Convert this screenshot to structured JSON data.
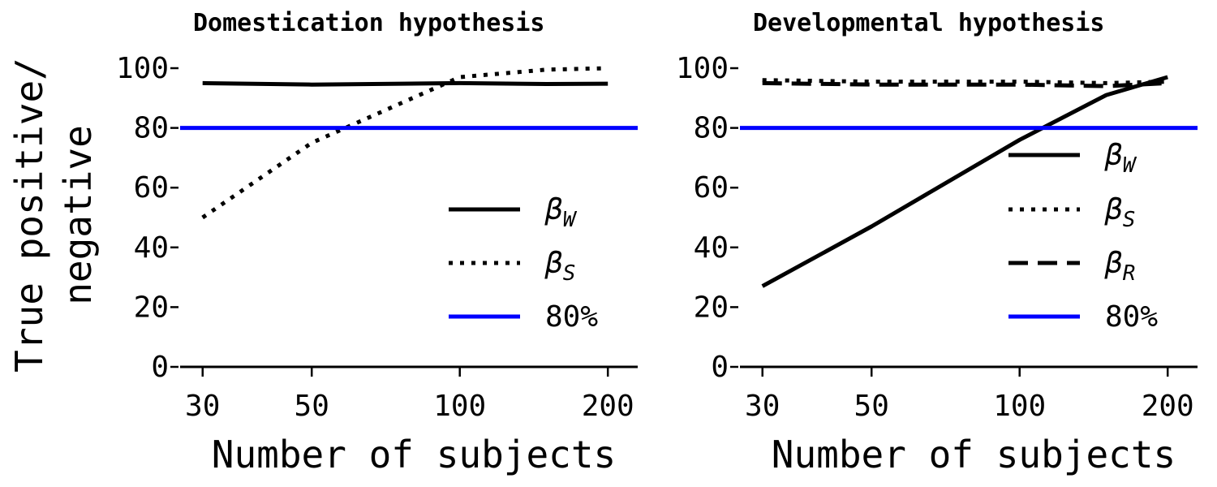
{
  "figure": {
    "ylabel_line1": "True positive/",
    "ylabel_line2": "negative"
  },
  "chart_data": [
    {
      "type": "line",
      "title": "Domestication hypothesis",
      "xlabel": "Number of subjects",
      "ylabel": "True positive/ negative",
      "x_scale": "log",
      "x_ticks": [
        30,
        50,
        100,
        200
      ],
      "x_tick_labels": [
        "30",
        "50",
        "100",
        "200"
      ],
      "xlim": [
        27,
        230
      ],
      "y_ticks": [
        0,
        20,
        40,
        60,
        80,
        100
      ],
      "y_tick_labels": [
        "0",
        "20",
        "40",
        "60",
        "80",
        "100"
      ],
      "ylim": [
        0,
        100
      ],
      "grid": false,
      "legend_position": "lower-right",
      "series": [
        {
          "name": "β_W",
          "label_main": "β",
          "label_sub": "W",
          "style": "solid",
          "color": "#000000",
          "x": [
            30,
            50,
            100,
            150,
            200
          ],
          "y": [
            95,
            94.5,
            95,
            94.7,
            94.8
          ]
        },
        {
          "name": "β_S",
          "label_main": "β",
          "label_sub": "S",
          "style": "dotted",
          "color": "#000000",
          "x": [
            30,
            50,
            100,
            150,
            200
          ],
          "y": [
            50,
            75,
            97,
            99.5,
            100
          ]
        },
        {
          "name": "80%",
          "label_main": "80%",
          "label_sub": "",
          "style": "solid",
          "color": "#0000ff",
          "x": [
            27,
            230
          ],
          "y": [
            80,
            80
          ]
        }
      ]
    },
    {
      "type": "line",
      "title": "Developmental hypothesis",
      "xlabel": "Number of subjects",
      "ylabel": "",
      "x_scale": "log",
      "x_ticks": [
        30,
        50,
        100,
        200
      ],
      "x_tick_labels": [
        "30",
        "50",
        "100",
        "200"
      ],
      "xlim": [
        27,
        230
      ],
      "y_ticks": [
        0,
        20,
        40,
        60,
        80,
        100
      ],
      "y_tick_labels": [
        "0",
        "20",
        "40",
        "60",
        "80",
        "100"
      ],
      "ylim": [
        0,
        100
      ],
      "grid": false,
      "legend_position": "lower-right",
      "series": [
        {
          "name": "β_W",
          "label_main": "β",
          "label_sub": "W",
          "style": "solid",
          "color": "#000000",
          "x": [
            30,
            50,
            100,
            150,
            200
          ],
          "y": [
            27,
            47,
            76,
            91,
            97
          ]
        },
        {
          "name": "β_S",
          "label_main": "β",
          "label_sub": "S",
          "style": "dotted",
          "color": "#000000",
          "x": [
            30,
            50,
            100,
            150,
            200
          ],
          "y": [
            96,
            95.5,
            95.5,
            95,
            95.5
          ]
        },
        {
          "name": "β_R",
          "label_main": "β",
          "label_sub": "R",
          "style": "dashed",
          "color": "#000000",
          "x": [
            30,
            50,
            100,
            150,
            200
          ],
          "y": [
            95,
            94.5,
            94.5,
            94,
            95
          ]
        },
        {
          "name": "80%",
          "label_main": "80%",
          "label_sub": "",
          "style": "solid",
          "color": "#0000ff",
          "x": [
            27,
            230
          ],
          "y": [
            80,
            80
          ]
        }
      ]
    }
  ]
}
